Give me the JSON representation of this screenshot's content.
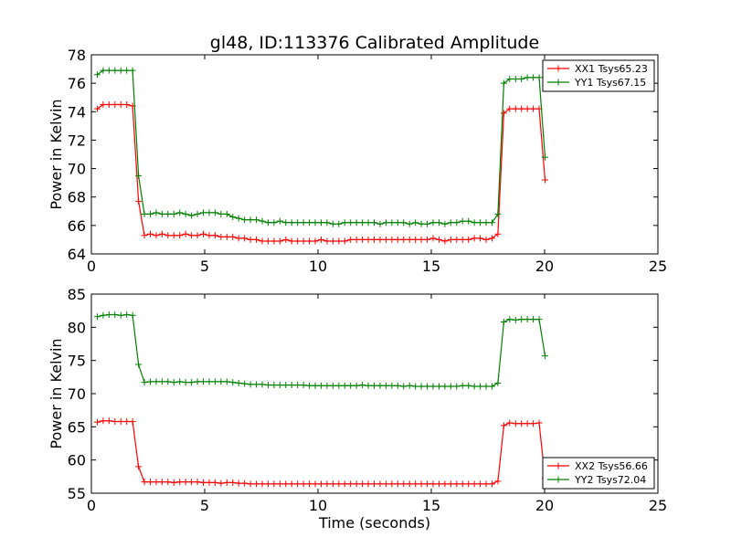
{
  "title": "gl48, ID:113376 Calibrated Amplitude",
  "chart_data": [
    {
      "type": "line",
      "xlabel": "",
      "ylabel": "Power in Kelvin",
      "xlim": [
        0,
        25
      ],
      "ylim": [
        64,
        78
      ],
      "xticks": [
        "0",
        "5",
        "10",
        "15",
        "20",
        "25"
      ],
      "yticks": [
        "64",
        "66",
        "68",
        "70",
        "72",
        "74",
        "76",
        "78"
      ],
      "grid": false,
      "legend_position": "top-right",
      "series": [
        {
          "name": "XX1 Tsys65.23",
          "color": "#ff0000",
          "x": [
            0.26,
            0.52,
            0.78,
            1.04,
            1.3,
            1.56,
            1.82,
            2.08,
            2.34,
            2.6,
            2.86,
            3.12,
            3.38,
            3.64,
            3.9,
            4.16,
            4.42,
            4.68,
            4.94,
            5.2,
            5.46,
            5.72,
            5.98,
            6.24,
            6.5,
            6.76,
            7.02,
            7.28,
            7.54,
            7.8,
            8.06,
            8.32,
            8.58,
            8.84,
            9.1,
            9.36,
            9.62,
            9.88,
            10.14,
            10.4,
            10.66,
            10.92,
            11.18,
            11.44,
            11.7,
            11.96,
            12.22,
            12.48,
            12.74,
            13.0,
            13.26,
            13.52,
            13.78,
            14.04,
            14.3,
            14.56,
            14.82,
            15.08,
            15.34,
            15.6,
            15.86,
            16.12,
            16.38,
            16.64,
            16.9,
            17.16,
            17.42,
            17.68,
            17.94,
            18.2,
            18.46,
            18.72,
            18.98,
            19.24,
            19.5,
            19.76,
            20.02
          ],
          "y": [
            74.2,
            74.5,
            74.5,
            74.5,
            74.5,
            74.5,
            74.4,
            67.7,
            65.3,
            65.4,
            65.3,
            65.4,
            65.3,
            65.3,
            65.3,
            65.4,
            65.3,
            65.3,
            65.4,
            65.3,
            65.3,
            65.2,
            65.2,
            65.2,
            65.1,
            65.1,
            65.0,
            65.0,
            64.9,
            64.9,
            64.9,
            64.9,
            65.0,
            64.9,
            64.9,
            64.9,
            64.9,
            64.9,
            65.0,
            64.9,
            64.9,
            64.9,
            64.9,
            65.0,
            65.0,
            65.0,
            65.0,
            65.0,
            65.0,
            65.0,
            65.0,
            65.0,
            65.0,
            65.0,
            65.0,
            65.0,
            65.0,
            65.1,
            65.0,
            64.9,
            65.0,
            65.0,
            65.0,
            65.0,
            65.1,
            65.1,
            65.0,
            65.1,
            65.4,
            73.9,
            74.2,
            74.2,
            74.2,
            74.2,
            74.2,
            74.2,
            69.2
          ]
        },
        {
          "name": "YY1 Tsys67.15",
          "color": "#008000",
          "x": [
            0.26,
            0.52,
            0.78,
            1.04,
            1.3,
            1.56,
            1.82,
            2.08,
            2.34,
            2.6,
            2.86,
            3.12,
            3.38,
            3.64,
            3.9,
            4.16,
            4.42,
            4.68,
            4.94,
            5.2,
            5.46,
            5.72,
            5.98,
            6.24,
            6.5,
            6.76,
            7.02,
            7.28,
            7.54,
            7.8,
            8.06,
            8.32,
            8.58,
            8.84,
            9.1,
            9.36,
            9.62,
            9.88,
            10.14,
            10.4,
            10.66,
            10.92,
            11.18,
            11.44,
            11.7,
            11.96,
            12.22,
            12.48,
            12.74,
            13.0,
            13.26,
            13.52,
            13.78,
            14.04,
            14.3,
            14.56,
            14.82,
            15.08,
            15.34,
            15.6,
            15.86,
            16.12,
            16.38,
            16.64,
            16.9,
            17.16,
            17.42,
            17.68,
            17.94,
            18.2,
            18.46,
            18.72,
            18.98,
            19.24,
            19.5,
            19.76,
            20.02
          ],
          "y": [
            76.6,
            76.9,
            76.9,
            76.9,
            76.9,
            76.9,
            76.9,
            69.5,
            66.8,
            66.8,
            66.9,
            66.8,
            66.8,
            66.8,
            66.9,
            66.8,
            66.7,
            66.8,
            66.9,
            66.9,
            66.9,
            66.8,
            66.8,
            66.6,
            66.5,
            66.4,
            66.4,
            66.4,
            66.3,
            66.2,
            66.2,
            66.3,
            66.2,
            66.2,
            66.2,
            66.2,
            66.2,
            66.2,
            66.2,
            66.2,
            66.1,
            66.1,
            66.2,
            66.2,
            66.2,
            66.2,
            66.2,
            66.2,
            66.1,
            66.2,
            66.2,
            66.2,
            66.2,
            66.1,
            66.2,
            66.1,
            66.1,
            66.2,
            66.2,
            66.1,
            66.2,
            66.2,
            66.3,
            66.3,
            66.2,
            66.2,
            66.2,
            66.2,
            66.8,
            76.0,
            76.3,
            76.3,
            76.3,
            76.4,
            76.4,
            76.4,
            70.8
          ]
        }
      ]
    },
    {
      "type": "line",
      "xlabel": "Time (seconds)",
      "ylabel": "Power in Kelvin",
      "xlim": [
        0,
        25
      ],
      "ylim": [
        55,
        85
      ],
      "xticks": [
        "0",
        "5",
        "10",
        "15",
        "20",
        "25"
      ],
      "yticks": [
        "55",
        "60",
        "65",
        "70",
        "75",
        "80",
        "85"
      ],
      "grid": false,
      "legend_position": "bottom-right",
      "series": [
        {
          "name": "XX2 Tsys56.66",
          "color": "#ff0000",
          "x": [
            0.26,
            0.52,
            0.78,
            1.04,
            1.3,
            1.56,
            1.82,
            2.08,
            2.34,
            2.6,
            2.86,
            3.12,
            3.38,
            3.64,
            3.9,
            4.16,
            4.42,
            4.68,
            4.94,
            5.2,
            5.46,
            5.72,
            5.98,
            6.24,
            6.5,
            6.76,
            7.02,
            7.28,
            7.54,
            7.8,
            8.06,
            8.32,
            8.58,
            8.84,
            9.1,
            9.36,
            9.62,
            9.88,
            10.14,
            10.4,
            10.66,
            10.92,
            11.18,
            11.44,
            11.7,
            11.96,
            12.22,
            12.48,
            12.74,
            13.0,
            13.26,
            13.52,
            13.78,
            14.04,
            14.3,
            14.56,
            14.82,
            15.08,
            15.34,
            15.6,
            15.86,
            16.12,
            16.38,
            16.64,
            16.9,
            17.16,
            17.42,
            17.68,
            17.94,
            18.2,
            18.46,
            18.72,
            18.98,
            19.24,
            19.5,
            19.76,
            20.02
          ],
          "y": [
            65.7,
            65.9,
            65.9,
            65.8,
            65.8,
            65.8,
            65.8,
            59.0,
            56.7,
            56.7,
            56.7,
            56.7,
            56.7,
            56.6,
            56.7,
            56.7,
            56.7,
            56.7,
            56.6,
            56.6,
            56.6,
            56.5,
            56.6,
            56.6,
            56.5,
            56.5,
            56.4,
            56.4,
            56.4,
            56.4,
            56.4,
            56.4,
            56.4,
            56.4,
            56.4,
            56.4,
            56.4,
            56.4,
            56.4,
            56.4,
            56.4,
            56.4,
            56.4,
            56.4,
            56.4,
            56.4,
            56.4,
            56.4,
            56.4,
            56.4,
            56.4,
            56.4,
            56.4,
            56.4,
            56.4,
            56.4,
            56.4,
            56.4,
            56.4,
            56.4,
            56.4,
            56.4,
            56.4,
            56.4,
            56.4,
            56.4,
            56.4,
            56.4,
            56.8,
            65.2,
            65.6,
            65.5,
            65.5,
            65.5,
            65.5,
            65.6,
            57.2
          ]
        },
        {
          "name": "YY2 Tsys72.04",
          "color": "#008000",
          "x": [
            0.26,
            0.52,
            0.78,
            1.04,
            1.3,
            1.56,
            1.82,
            2.08,
            2.34,
            2.6,
            2.86,
            3.12,
            3.38,
            3.64,
            3.9,
            4.16,
            4.42,
            4.68,
            4.94,
            5.2,
            5.46,
            5.72,
            5.98,
            6.24,
            6.5,
            6.76,
            7.02,
            7.28,
            7.54,
            7.8,
            8.06,
            8.32,
            8.58,
            8.84,
            9.1,
            9.36,
            9.62,
            9.88,
            10.14,
            10.4,
            10.66,
            10.92,
            11.18,
            11.44,
            11.7,
            11.96,
            12.22,
            12.48,
            12.74,
            13.0,
            13.26,
            13.52,
            13.78,
            14.04,
            14.3,
            14.56,
            14.82,
            15.08,
            15.34,
            15.6,
            15.86,
            16.12,
            16.38,
            16.64,
            16.9,
            17.16,
            17.42,
            17.68,
            17.94,
            18.2,
            18.46,
            18.72,
            18.98,
            19.24,
            19.5,
            19.76,
            20.02
          ],
          "y": [
            81.6,
            81.8,
            81.9,
            81.9,
            81.8,
            81.9,
            81.8,
            74.4,
            71.7,
            71.8,
            71.8,
            71.8,
            71.8,
            71.7,
            71.8,
            71.7,
            71.7,
            71.8,
            71.8,
            71.8,
            71.8,
            71.8,
            71.8,
            71.7,
            71.6,
            71.5,
            71.4,
            71.4,
            71.4,
            71.3,
            71.3,
            71.3,
            71.3,
            71.3,
            71.3,
            71.3,
            71.2,
            71.2,
            71.2,
            71.2,
            71.2,
            71.2,
            71.2,
            71.2,
            71.2,
            71.3,
            71.2,
            71.2,
            71.2,
            71.2,
            71.2,
            71.2,
            71.1,
            71.2,
            71.1,
            71.1,
            71.1,
            71.1,
            71.1,
            71.1,
            71.1,
            71.1,
            71.2,
            71.2,
            71.1,
            71.1,
            71.1,
            71.1,
            71.6,
            80.8,
            81.2,
            81.1,
            81.2,
            81.2,
            81.2,
            81.2,
            75.7
          ]
        }
      ]
    }
  ]
}
